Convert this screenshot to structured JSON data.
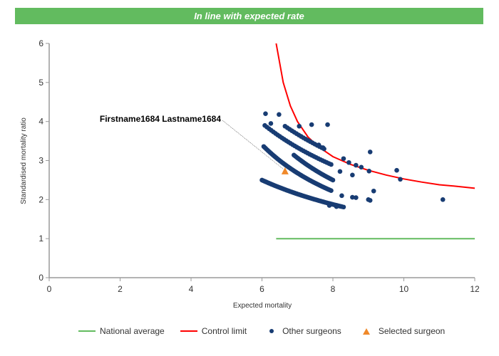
{
  "banner": {
    "text": "In line with expected rate",
    "color": "#62bb5f"
  },
  "chart_data": {
    "type": "scatter",
    "title": "In line with expected rate",
    "xlabel": "Expected mortality",
    "ylabel": "Standardised mortality ratio",
    "xlim": [
      0,
      12
    ],
    "ylim": [
      0,
      6
    ],
    "xticks": [
      0,
      2,
      4,
      6,
      8,
      10,
      12
    ],
    "yticks": [
      0,
      1,
      2,
      3,
      4,
      5,
      6
    ],
    "grid": false,
    "legend_position": "bottom",
    "annotation": {
      "text": "Firstname1684 Lastname1684",
      "target": "selected_surgeon"
    },
    "series": [
      {
        "name": "National average",
        "type": "line",
        "color": "#62bb5f",
        "points": [
          [
            6.4,
            1.0
          ],
          [
            12.0,
            1.0
          ]
        ]
      },
      {
        "name": "Control limit",
        "type": "line",
        "color": "#ff0000",
        "points": [
          [
            6.4,
            6.0
          ],
          [
            6.6,
            5.0
          ],
          [
            6.8,
            4.4
          ],
          [
            7.0,
            4.0
          ],
          [
            7.3,
            3.6
          ],
          [
            7.6,
            3.35
          ],
          [
            8.0,
            3.1
          ],
          [
            8.5,
            2.9
          ],
          [
            9.0,
            2.75
          ],
          [
            9.5,
            2.63
          ],
          [
            10.0,
            2.53
          ],
          [
            10.5,
            2.45
          ],
          [
            11.0,
            2.38
          ],
          [
            11.5,
            2.34
          ],
          [
            12.0,
            2.29
          ]
        ]
      },
      {
        "name": "Other surgeons",
        "type": "scatter",
        "color": "#183c73",
        "bands": [
          {
            "x_from": 6.0,
            "x_to": 8.25,
            "y_from": 2.5,
            "y_to": 1.82,
            "count": 70
          },
          {
            "x_from": 6.05,
            "x_to": 7.95,
            "y_from": 3.36,
            "y_to": 2.23,
            "count": 55
          },
          {
            "x_from": 6.9,
            "x_to": 8.0,
            "y_from": 3.14,
            "y_to": 2.5,
            "count": 30
          },
          {
            "x_from": 6.08,
            "x_to": 7.95,
            "y_from": 3.9,
            "y_to": 2.9,
            "count": 32
          },
          {
            "x_from": 6.65,
            "x_to": 7.75,
            "y_from": 3.88,
            "y_to": 3.3,
            "count": 18
          }
        ],
        "points": [
          [
            6.1,
            4.2
          ],
          [
            6.48,
            4.18
          ],
          [
            7.05,
            3.88
          ],
          [
            7.4,
            3.92
          ],
          [
            7.85,
            3.92
          ],
          [
            6.25,
            3.95
          ],
          [
            7.6,
            3.4
          ],
          [
            7.72,
            3.33
          ],
          [
            8.3,
            3.05
          ],
          [
            8.2,
            2.72
          ],
          [
            8.45,
            2.95
          ],
          [
            8.55,
            2.63
          ],
          [
            8.65,
            2.88
          ],
          [
            8.8,
            2.83
          ],
          [
            9.05,
            3.22
          ],
          [
            9.02,
            2.73
          ],
          [
            8.25,
            2.1
          ],
          [
            8.55,
            2.06
          ],
          [
            8.65,
            2.05
          ],
          [
            9.0,
            2.0
          ],
          [
            9.05,
            1.98
          ],
          [
            9.15,
            2.22
          ],
          [
            9.8,
            2.75
          ],
          [
            9.9,
            2.52
          ],
          [
            11.1,
            2.0
          ],
          [
            8.1,
            1.82
          ],
          [
            8.3,
            1.81
          ],
          [
            7.9,
            1.85
          ]
        ]
      },
      {
        "name": "Selected surgeon",
        "type": "scatter",
        "marker": "triangle",
        "color": "#f0892a",
        "points": [
          [
            6.65,
            2.72
          ]
        ]
      }
    ]
  }
}
